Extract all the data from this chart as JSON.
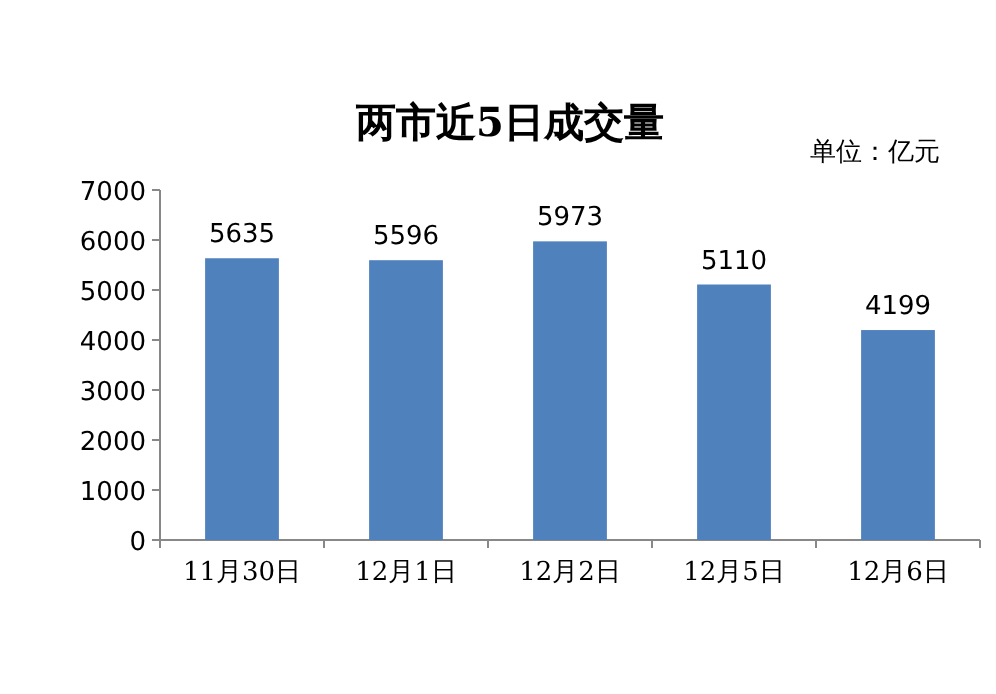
{
  "chart_data": {
    "type": "bar",
    "title": "两市近5日成交量",
    "annotations": [
      "单位：亿元"
    ],
    "categories": [
      "11月30日",
      "12月1日",
      "12月2日",
      "12月5日",
      "12月6日"
    ],
    "values": [
      5635,
      5596,
      5973,
      5110,
      4199
    ],
    "color": "#4f81bd",
    "ylim": [
      0,
      7000
    ],
    "yticks": [
      0,
      1000,
      2000,
      3000,
      4000,
      5000,
      6000,
      7000
    ],
    "data_labels": true
  }
}
